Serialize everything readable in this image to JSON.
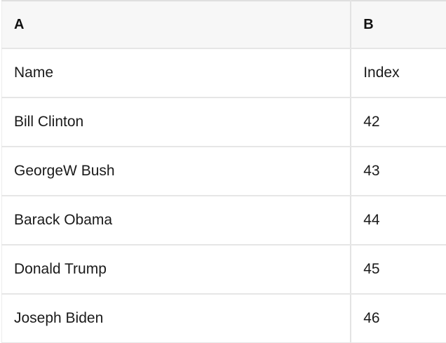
{
  "table": {
    "columns": [
      {
        "label": "A"
      },
      {
        "label": "B"
      }
    ],
    "rows": [
      [
        "Name",
        "Index"
      ],
      [
        "Bill Clinton",
        "42"
      ],
      [
        "GeorgeW Bush",
        "43"
      ],
      [
        "Barack Obama",
        "44"
      ],
      [
        "Donald Trump",
        "45"
      ],
      [
        "Joseph Biden",
        "46"
      ]
    ]
  },
  "colors": {
    "background": "#ffffff",
    "header_background": "#f7f7f7",
    "gridline": "#e6e6e6",
    "text": "#1a1a1a"
  }
}
